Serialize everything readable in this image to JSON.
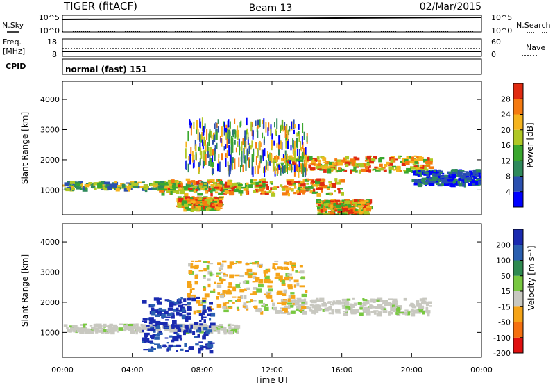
{
  "header": {
    "station": "TIGER (fitACF)",
    "beam": "Beam 13",
    "date": "02/Mar/2015"
  },
  "summary_panels": {
    "nsky": {
      "label": "N.Sky",
      "ticks": [
        "10^5",
        "10^0"
      ]
    },
    "nsearch": {
      "label": "N.Search",
      "ticks": [
        "10^5",
        "10^0"
      ]
    },
    "freq": {
      "label_line1": "Freq.",
      "label_line2": "[MHz]",
      "ticks": [
        "18",
        "8"
      ]
    },
    "nave": {
      "label": "Nave",
      "ticks": [
        "60",
        "0"
      ]
    },
    "cpid": {
      "label": "CPID",
      "value": "normal (fast) 151"
    }
  },
  "chart_data": [
    {
      "type": "heatmap",
      "name": "power",
      "ylabel": "Slant Range [km]",
      "xlabel": "",
      "ylim": [
        180,
        4600
      ],
      "yticks": [
        "1000",
        "2000",
        "3000",
        "4000"
      ],
      "x_ticks": [
        "00:00",
        "04:00",
        "08:00",
        "12:00",
        "16:00",
        "20:00",
        "00:00"
      ],
      "colorbar": {
        "label": "Power [dB]",
        "ticks": [
          "4",
          "8",
          "12",
          "16",
          "20",
          "24",
          "28"
        ],
        "colors": [
          "#0000ff",
          "#2b50b0",
          "#2f8a5c",
          "#3aa82e",
          "#b0c824",
          "#f5b41e",
          "#f57a10",
          "#e02a10"
        ]
      },
      "echo_bands": [
        {
          "t": [
            0,
            10
          ],
          "range": [
            1050,
            1300
          ],
          "level": "mid"
        },
        {
          "t": [
            5.5,
            16
          ],
          "range": [
            900,
            1400
          ],
          "level": "high"
        },
        {
          "t": [
            12,
            21
          ],
          "range": [
            1650,
            2150
          ],
          "level": "high"
        },
        {
          "t": [
            7,
            14
          ],
          "range": [
            1700,
            3400
          ],
          "level": "streaks"
        },
        {
          "t": [
            20,
            24
          ],
          "range": [
            1200,
            1700
          ],
          "level": "low"
        },
        {
          "t": [
            6.5,
            9
          ],
          "range": [
            400,
            800
          ],
          "level": "high"
        },
        {
          "t": [
            14.5,
            17.5
          ],
          "range": [
            200,
            700
          ],
          "level": "high"
        }
      ]
    },
    {
      "type": "heatmap",
      "name": "velocity",
      "ylabel": "Slant Range [km]",
      "xlabel": "Time UT",
      "ylim": [
        180,
        4600
      ],
      "yticks": [
        "1000",
        "2000",
        "3000",
        "4000"
      ],
      "x_ticks": [
        "00:00",
        "04:00",
        "08:00",
        "12:00",
        "16:00",
        "20:00",
        "00:00"
      ],
      "colorbar": {
        "label": "Velocity [m s⁻¹]",
        "ticks": [
          "200",
          "100",
          "50",
          "15",
          "-15",
          "-50",
          "-100",
          "-200"
        ],
        "colors": [
          "#1a2ab0",
          "#2a5fb0",
          "#2e8a50",
          "#78c840",
          "#c8c8c0",
          "#f5a418",
          "#f57010",
          "#e01010"
        ]
      },
      "echo_bands": [
        {
          "t": [
            0,
            10
          ],
          "range": [
            1050,
            1300
          ],
          "level": "ground"
        },
        {
          "t": [
            12,
            21
          ],
          "range": [
            1650,
            2150
          ],
          "level": "ground"
        },
        {
          "t": [
            7,
            14
          ],
          "range": [
            1700,
            3400
          ],
          "level": "negative"
        },
        {
          "t": [
            4.5,
            8.5
          ],
          "range": [
            400,
            2200
          ],
          "level": "positive"
        }
      ]
    }
  ]
}
